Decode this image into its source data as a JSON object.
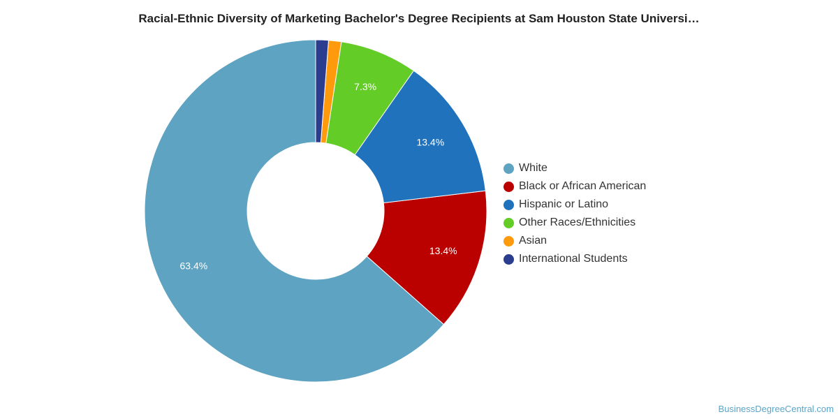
{
  "chart_data": {
    "type": "pie",
    "variant": "donut",
    "title": "Racial-Ethnic Diversity of Marketing Bachelor's Degree Recipients at Sam Houston State Universi…",
    "legend_position": "right",
    "slices": [
      {
        "name": "White",
        "value": 63.4,
        "label": "63.4%",
        "color": "#5ea3c1"
      },
      {
        "name": "Black or African American",
        "value": 13.4,
        "label": "13.4%",
        "color": "#bb0000"
      },
      {
        "name": "Hispanic or Latino",
        "value": 13.4,
        "label": "13.4%",
        "color": "#1f72bb"
      },
      {
        "name": "Other Races/Ethnicities",
        "value": 7.3,
        "label": "7.3%",
        "color": "#63cc26"
      },
      {
        "name": "Asian",
        "value": 1.2,
        "label": "",
        "color": "#ff9a0c"
      },
      {
        "name": "International Students",
        "value": 1.2,
        "label": "",
        "color": "#2b3d8f"
      }
    ]
  },
  "credit": "BusinessDegreeCentral.com"
}
